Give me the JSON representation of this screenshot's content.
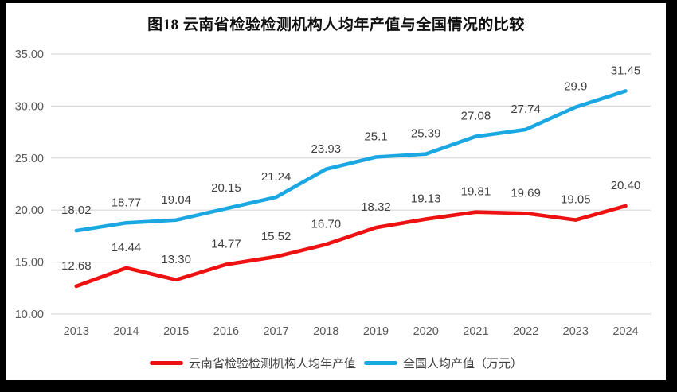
{
  "title": "图18 云南省检验检测机构人均年产值与全国情况的比较",
  "chart_data": {
    "type": "line",
    "title": "图18 云南省检验检测机构人均年产值与全国情况的比较",
    "categories": [
      "2013",
      "2014",
      "2015",
      "2016",
      "2017",
      "2018",
      "2019",
      "2020",
      "2021",
      "2022",
      "2023",
      "2024"
    ],
    "series": [
      {
        "name": "云南省检验检测机构人均年产值",
        "color": "#EE1111",
        "values": [
          12.68,
          14.44,
          13.3,
          14.77,
          15.52,
          16.7,
          18.32,
          19.13,
          19.81,
          19.69,
          19.05,
          20.4
        ],
        "labels": [
          "12.68",
          "14.44",
          "13.30",
          "14.77",
          "15.52",
          "16.70",
          "18.32",
          "19.13",
          "19.81",
          "19.69",
          "19.05",
          "20.40"
        ]
      },
      {
        "name": "全国人均产值（万元）",
        "color": "#1BA8E2",
        "values": [
          18.02,
          18.77,
          19.04,
          20.15,
          21.24,
          23.93,
          25.1,
          25.39,
          27.08,
          27.74,
          29.9,
          31.45
        ],
        "labels": [
          "18.02",
          "18.77",
          "19.04",
          "20.15",
          "21.24",
          "23.93",
          "25.1",
          "25.39",
          "27.08",
          "27.74",
          "29.9",
          "31.45"
        ]
      }
    ],
    "ylim": [
      10,
      35
    ],
    "ytick_step": 5,
    "ytick_labels": [
      "10.00",
      "15.00",
      "20.00",
      "25.00",
      "30.00",
      "35.00"
    ],
    "xlabel": "",
    "ylabel": "",
    "grid": "horizontal",
    "legend_position": "bottom"
  },
  "legend": {
    "items": [
      {
        "label": "云南省检验检测机构人均年产值",
        "color": "#EE1111"
      },
      {
        "label": "全国人均产值（万元）",
        "color": "#1BA8E2"
      }
    ]
  },
  "colors": {
    "red_series": "#EE1111",
    "blue_series": "#1BA8E2",
    "gridline": "#D9D9D9",
    "axis_text": "#595959",
    "data_label": "#404040",
    "frame": "#000000",
    "background": "#FFFFFF",
    "title_text": "#111111"
  }
}
